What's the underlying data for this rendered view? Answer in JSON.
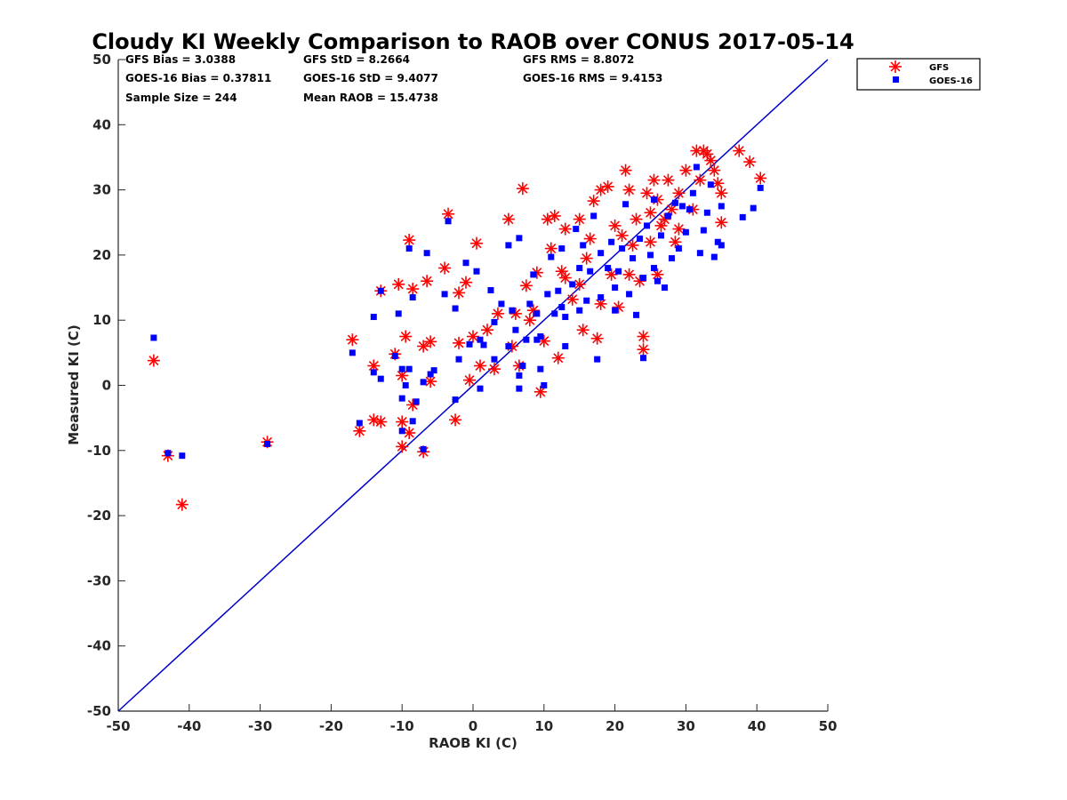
{
  "chart_data": {
    "type": "scatter",
    "title": "Cloudy KI Weekly Comparison to RAOB over CONUS 2017-05-14",
    "xlabel": "RAOB KI (C)",
    "ylabel": "Measured KI (C)",
    "xlim": [
      -50,
      50
    ],
    "ylim": [
      -50,
      50
    ],
    "xticks": [
      "-50",
      "-40",
      "-30",
      "-20",
      "-10",
      "0",
      "10",
      "20",
      "30",
      "40",
      "50"
    ],
    "yticks": [
      "50",
      "40",
      "30",
      "20",
      "10",
      "0",
      "-10",
      "-20",
      "-30",
      "-40",
      "-50"
    ],
    "grid": false,
    "legend_position": "top-right (outside)",
    "reference_line": {
      "x": [
        -50,
        50
      ],
      "y": [
        -50,
        50
      ],
      "color": "#0000cc"
    },
    "stats": [
      [
        "GFS Bias = 3.0388",
        "GFS StD = 8.2664",
        "GFS RMS = 8.8072"
      ],
      [
        "GOES-16 Bias = 0.37811",
        "GOES-16 StD = 9.4077",
        "GOES-16 RMS = 9.4153"
      ],
      [
        "Sample Size = 244",
        "Mean RAOB = 15.4738"
      ]
    ],
    "series": [
      {
        "name": "GFS",
        "marker": "asterisk",
        "color": "#ff0000",
        "points": [
          [
            -45,
            3.8
          ],
          [
            -43,
            -10.8
          ],
          [
            -41,
            -18.3
          ],
          [
            -29,
            -8.7
          ],
          [
            -17,
            7
          ],
          [
            -16,
            -7
          ],
          [
            -14,
            3
          ],
          [
            -14,
            -5.3
          ],
          [
            -13,
            14.5
          ],
          [
            -13,
            -5.6
          ],
          [
            -11,
            4.8
          ],
          [
            -10.5,
            15.5
          ],
          [
            -10,
            -9.4
          ],
          [
            -10,
            1.5
          ],
          [
            -10,
            -5.6
          ],
          [
            -9.5,
            7.5
          ],
          [
            -9,
            22.3
          ],
          [
            -9,
            -7.3
          ],
          [
            -8.5,
            14.8
          ],
          [
            -8.5,
            -3
          ],
          [
            -7,
            -10.2
          ],
          [
            -7,
            6
          ],
          [
            -6.5,
            16
          ],
          [
            -6,
            6.7
          ],
          [
            -6,
            0.6
          ],
          [
            -4,
            18
          ],
          [
            -3.5,
            26.3
          ],
          [
            -2.5,
            -5.3
          ],
          [
            -2,
            14.2
          ],
          [
            -2,
            6.5
          ],
          [
            -1,
            15.8
          ],
          [
            -0.5,
            0.8
          ],
          [
            0,
            7.5
          ],
          [
            0.5,
            21.8
          ],
          [
            1,
            3
          ],
          [
            2,
            8.5
          ],
          [
            3,
            2.5
          ],
          [
            3.5,
            11
          ],
          [
            5,
            25.5
          ],
          [
            5.5,
            6
          ],
          [
            6,
            11
          ],
          [
            6.5,
            3
          ],
          [
            7,
            30.2
          ],
          [
            7.5,
            15.3
          ],
          [
            8,
            10
          ],
          [
            8.5,
            11.5
          ],
          [
            9,
            17.3
          ],
          [
            9.5,
            -1
          ],
          [
            10,
            6.8
          ],
          [
            10.5,
            25.5
          ],
          [
            11,
            21
          ],
          [
            11.5,
            26
          ],
          [
            12,
            4.2
          ],
          [
            12.5,
            17.5
          ],
          [
            13,
            16.5
          ],
          [
            13,
            24
          ],
          [
            14,
            13.2
          ],
          [
            15,
            15.5
          ],
          [
            15,
            25.5
          ],
          [
            15.5,
            8.5
          ],
          [
            16,
            19.5
          ],
          [
            16.5,
            22.5
          ],
          [
            17,
            28.3
          ],
          [
            17.5,
            7.2
          ],
          [
            18,
            12.5
          ],
          [
            18,
            30
          ],
          [
            19,
            30.5
          ],
          [
            19.5,
            17
          ],
          [
            20,
            24.5
          ],
          [
            20.5,
            12
          ],
          [
            21,
            23
          ],
          [
            21.5,
            33
          ],
          [
            22,
            30
          ],
          [
            22,
            17
          ],
          [
            22.5,
            21.5
          ],
          [
            23,
            25.5
          ],
          [
            23.5,
            16
          ],
          [
            24,
            7.5
          ],
          [
            24,
            5.5
          ],
          [
            24.5,
            29.5
          ],
          [
            25,
            26.5
          ],
          [
            25,
            22
          ],
          [
            25.5,
            31.5
          ],
          [
            26,
            17
          ],
          [
            26,
            28.5
          ],
          [
            26.5,
            24.5
          ],
          [
            27,
            25.5
          ],
          [
            27.5,
            31.5
          ],
          [
            28,
            27
          ],
          [
            28.5,
            22
          ],
          [
            29,
            29.5
          ],
          [
            29,
            24
          ],
          [
            30,
            33
          ],
          [
            31,
            27
          ],
          [
            31.5,
            36
          ],
          [
            32,
            31.5
          ],
          [
            32.5,
            36
          ],
          [
            33,
            35.5
          ],
          [
            33.5,
            34.5
          ],
          [
            34,
            33
          ],
          [
            34.5,
            31
          ],
          [
            35,
            25
          ],
          [
            35,
            29.5
          ],
          [
            37.5,
            36
          ],
          [
            39,
            34.3
          ],
          [
            40.5,
            31.8
          ]
        ]
      },
      {
        "name": "GOES-16",
        "marker": "square",
        "color": "#0000ff",
        "points": [
          [
            -45,
            7.3
          ],
          [
            -43,
            -10.4
          ],
          [
            -41,
            -10.8
          ],
          [
            -29,
            -9
          ],
          [
            -17,
            5
          ],
          [
            -16,
            -5.8
          ],
          [
            -14,
            10.5
          ],
          [
            -14,
            2
          ],
          [
            -13,
            14.5
          ],
          [
            -13,
            1
          ],
          [
            -11,
            4.5
          ],
          [
            -10.5,
            11
          ],
          [
            -10,
            2.5
          ],
          [
            -10,
            -2
          ],
          [
            -10,
            -7
          ],
          [
            -9.5,
            0
          ],
          [
            -9,
            21
          ],
          [
            -9,
            2.5
          ],
          [
            -8.5,
            13.5
          ],
          [
            -8.5,
            -5.5
          ],
          [
            -8,
            -2.5
          ],
          [
            -7,
            0.5
          ],
          [
            -7,
            -9.8
          ],
          [
            -6.5,
            20.3
          ],
          [
            -6,
            1.7
          ],
          [
            -5.5,
            2.3
          ],
          [
            -4,
            14
          ],
          [
            -3.5,
            25.2
          ],
          [
            -2.5,
            11.8
          ],
          [
            -2.5,
            -2.2
          ],
          [
            -2,
            4
          ],
          [
            -1,
            18.8
          ],
          [
            -0.5,
            6.3
          ],
          [
            0.5,
            17.5
          ],
          [
            1,
            -0.5
          ],
          [
            1,
            7
          ],
          [
            1.5,
            6.2
          ],
          [
            2.5,
            14.6
          ],
          [
            3,
            4
          ],
          [
            3,
            9.7
          ],
          [
            4,
            12.5
          ],
          [
            5,
            21.5
          ],
          [
            5,
            6
          ],
          [
            5.5,
            11.5
          ],
          [
            6,
            8.5
          ],
          [
            6.5,
            22.6
          ],
          [
            6.5,
            1.5
          ],
          [
            6.5,
            -0.5
          ],
          [
            7,
            3
          ],
          [
            7.5,
            7
          ],
          [
            8,
            12.5
          ],
          [
            8.5,
            17
          ],
          [
            9,
            7
          ],
          [
            9,
            11
          ],
          [
            9.5,
            7.5
          ],
          [
            9.5,
            2.5
          ],
          [
            10,
            0
          ],
          [
            10.5,
            14
          ],
          [
            11,
            19.7
          ],
          [
            11.5,
            11
          ],
          [
            12,
            14.5
          ],
          [
            12.5,
            12
          ],
          [
            12.5,
            21
          ],
          [
            13,
            10.5
          ],
          [
            13,
            6
          ],
          [
            14,
            15.5
          ],
          [
            14.5,
            24
          ],
          [
            15,
            11.5
          ],
          [
            15,
            18
          ],
          [
            15.5,
            21.5
          ],
          [
            16,
            13
          ],
          [
            16.5,
            17.5
          ],
          [
            17,
            26
          ],
          [
            17.5,
            4
          ],
          [
            18,
            13.5
          ],
          [
            18,
            20.3
          ],
          [
            19,
            18
          ],
          [
            19.5,
            22
          ],
          [
            20,
            15
          ],
          [
            20,
            11.5
          ],
          [
            20.5,
            17.5
          ],
          [
            21,
            21
          ],
          [
            21.5,
            27.8
          ],
          [
            22,
            14
          ],
          [
            22.5,
            19.5
          ],
          [
            23,
            10.8
          ],
          [
            23.5,
            22.5
          ],
          [
            24,
            4.2
          ],
          [
            24,
            16.5
          ],
          [
            24.5,
            24.5
          ],
          [
            25,
            20
          ],
          [
            25.5,
            18
          ],
          [
            25.5,
            28.5
          ],
          [
            26,
            16
          ],
          [
            26.5,
            23
          ],
          [
            27,
            15
          ],
          [
            27.5,
            26
          ],
          [
            28,
            19.5
          ],
          [
            28.5,
            28
          ],
          [
            29,
            21
          ],
          [
            29.5,
            27.5
          ],
          [
            30,
            23.5
          ],
          [
            30.5,
            27
          ],
          [
            31,
            29.5
          ],
          [
            31.5,
            33.5
          ],
          [
            32,
            20.3
          ],
          [
            32.5,
            23.8
          ],
          [
            33,
            26.5
          ],
          [
            33.5,
            30.8
          ],
          [
            34,
            19.7
          ],
          [
            34.5,
            22
          ],
          [
            35,
            27.5
          ],
          [
            35,
            21.5
          ],
          [
            38,
            25.8
          ],
          [
            39.5,
            27.2
          ],
          [
            40.5,
            30.3
          ]
        ]
      }
    ]
  }
}
